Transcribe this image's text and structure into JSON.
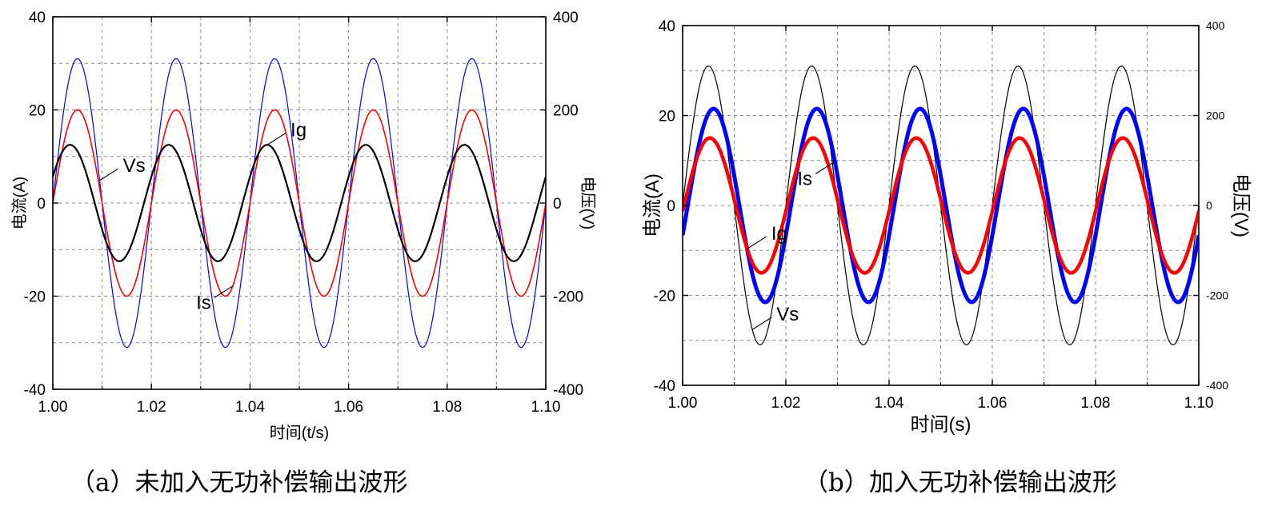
{
  "chart_data": [
    {
      "type": "line",
      "xlabel": "时间(t/s)",
      "ylabel": "电流(A)",
      "y2label": "电压(V)",
      "xlim": [
        1.0,
        1.1
      ],
      "ylim": [
        -40,
        40
      ],
      "y2lim": [
        -400,
        400
      ],
      "x_ticks": [
        "1.00",
        "1.02",
        "1.04",
        "1.06",
        "1.08",
        "1.10"
      ],
      "y_ticks": [
        "-40",
        "-20",
        "0",
        "20",
        "40"
      ],
      "y2_ticks": [
        "-400",
        "-200",
        "0",
        "200",
        "400"
      ],
      "grid": true,
      "frequency_hz": 50,
      "series": [
        {
          "name": "Vs",
          "axis": "right",
          "amplitude": 310,
          "phase_deg": 0,
          "color": "#0000ff",
          "width": 1.2
        },
        {
          "name": "Is",
          "axis": "left",
          "amplitude": 20,
          "phase_deg": 0,
          "color": "#ff0000",
          "width": 1.6
        },
        {
          "name": "Ig",
          "axis": "left",
          "amplitude": 12.5,
          "phase_deg": 27,
          "color": "#000000",
          "width": 2.2
        }
      ],
      "annotations": [
        {
          "text": "Vs",
          "series": "Vs",
          "x": 1.0095,
          "y": 26
        },
        {
          "text": "Ig",
          "series": "Ig",
          "x": 1.0435,
          "y": 12.8
        },
        {
          "text": "Is",
          "series": "Is",
          "x": 1.0365,
          "y": -22
        }
      ]
    },
    {
      "type": "line",
      "xlabel": "时间(s)",
      "ylabel": "电流(A)",
      "y2label": "电压(V)",
      "xlim": [
        1.0,
        1.1
      ],
      "ylim": [
        -40,
        40
      ],
      "y2lim": [
        -400,
        400
      ],
      "x_ticks": [
        "1.00",
        "1.02",
        "1.04",
        "1.06",
        "1.08",
        "1.10"
      ],
      "y_ticks": [
        "-40",
        "-20",
        "0",
        "20",
        "40"
      ],
      "y2_ticks": [
        "-400",
        "-200",
        "0",
        "200",
        "400"
      ],
      "grid": true,
      "frequency_hz": 50,
      "series": [
        {
          "name": "Vs",
          "axis": "right",
          "amplitude": 310,
          "phase_deg": 0,
          "color": "#000000",
          "width": 1.2
        },
        {
          "name": "Is",
          "axis": "left",
          "amplitude": 21.5,
          "phase_deg": -18,
          "color": "#0000ff",
          "width": 5
        },
        {
          "name": "Ig",
          "axis": "left",
          "amplitude": 15,
          "phase_deg": -5,
          "color": "#ff0000",
          "width": 4.5
        }
      ],
      "annotations": [
        {
          "text": "Vs",
          "series": "Vs",
          "x": 1.0135,
          "y": 26.5
        },
        {
          "text": "Ig",
          "series": "Ig",
          "x": 1.0125,
          "y": 14
        },
        {
          "text": "Is",
          "series": "Is",
          "x": 1.0295,
          "y": -19
        }
      ]
    }
  ],
  "captions": {
    "a": "（a）未加入无功补偿输出波形",
    "b": "（b）加入无功补偿输出波形"
  }
}
